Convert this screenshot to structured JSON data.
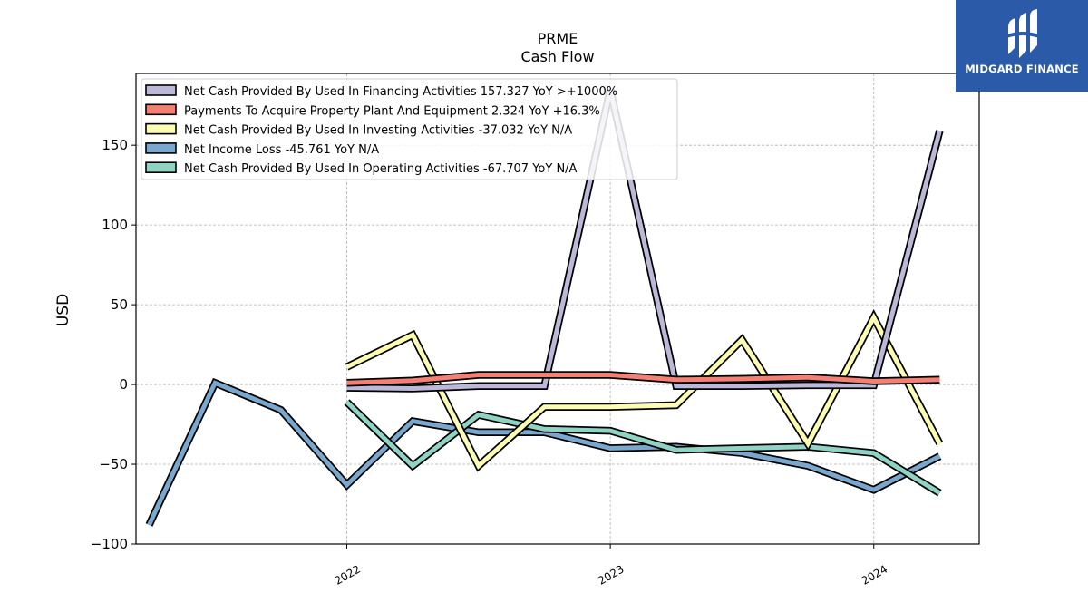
{
  "brand": {
    "name": "MIDGARD FINANCE"
  },
  "chart_data": {
    "type": "line",
    "title": "PRME",
    "subtitle": "Cash Flow",
    "xlabel": "",
    "ylabel": "USD",
    "ylim": [
      -100,
      195
    ],
    "xlim": [
      2021.2,
      2024.4
    ],
    "yticks": [
      -100,
      -50,
      0,
      50,
      100,
      150
    ],
    "yticklabels": [
      "−100",
      "−50",
      "0",
      "50",
      "100",
      "150"
    ],
    "xticks": [
      2022,
      2023,
      2024
    ],
    "xticklabels": [
      "2022",
      "2023",
      "2024"
    ],
    "grid": true,
    "legend_position": "top-left",
    "series": [
      {
        "name": "Net Cash Provided By Used In Financing Activities",
        "legend": "Net Cash Provided By Used In Financing Activities  157.327 YoY >+1000%",
        "color": "#bcb8d8",
        "x": [
          2022.0,
          2022.25,
          2022.5,
          2022.75,
          2023.0,
          2023.25,
          2023.5,
          2023.75,
          2024.0,
          2024.25
        ],
        "values": [
          -2,
          -2.5,
          -1,
          -1,
          185,
          -1,
          -1,
          -0.5,
          -0.5,
          159
        ]
      },
      {
        "name": "Payments To Acquire Property Plant And Equipment",
        "legend": "Payments To Acquire Property Plant And Equipment  2.324 YoY +16.3%",
        "color": "#f47f73",
        "x": [
          2022.0,
          2022.25,
          2022.5,
          2022.75,
          2023.0,
          2023.25,
          2023.5,
          2023.75,
          2024.0,
          2024.25
        ],
        "values": [
          1,
          2.5,
          6,
          6,
          6,
          3,
          3.5,
          4.5,
          2,
          3
        ]
      },
      {
        "name": "Net Cash Provided By Used In Investing Activities",
        "legend": "Net Cash Provided By Used In Investing Activities  -37.032 YoY N/A",
        "color": "#fcfcb3",
        "x": [
          2022.0,
          2022.25,
          2022.5,
          2022.75,
          2023.0,
          2023.25,
          2023.5,
          2023.75,
          2024.0,
          2024.25
        ],
        "values": [
          11,
          31,
          -51,
          -14,
          -14,
          -13,
          28,
          -37,
          42,
          -37
        ]
      },
      {
        "name": "Net Income Loss",
        "legend": "Net Income Loss  -45.761 YoY N/A",
        "color": "#7aa7cd",
        "x": [
          2021.25,
          2021.5,
          2021.75,
          2022.0,
          2022.25,
          2022.5,
          2022.75,
          2023.0,
          2023.25,
          2023.5,
          2023.75,
          2024.0,
          2024.25
        ],
        "values": [
          -88,
          1,
          -16,
          -63,
          -23,
          -30,
          -30,
          -40,
          -39,
          -43,
          -51,
          -66,
          -45
        ]
      },
      {
        "name": "Net Cash Provided By Used In Operating Activities",
        "legend": "Net Cash Provided By Used In Operating Activities  -67.707 YoY N/A",
        "color": "#8fd3c4",
        "x": [
          2022.0,
          2022.25,
          2022.5,
          2022.75,
          2023.0,
          2023.25,
          2023.5,
          2023.75,
          2024.0,
          2024.25
        ],
        "values": [
          -11,
          -51,
          -19,
          -28,
          -29,
          -41,
          -40,
          -39,
          -43,
          -68
        ]
      }
    ],
    "draw_order": [
      3,
      4,
      2,
      0,
      1
    ]
  }
}
